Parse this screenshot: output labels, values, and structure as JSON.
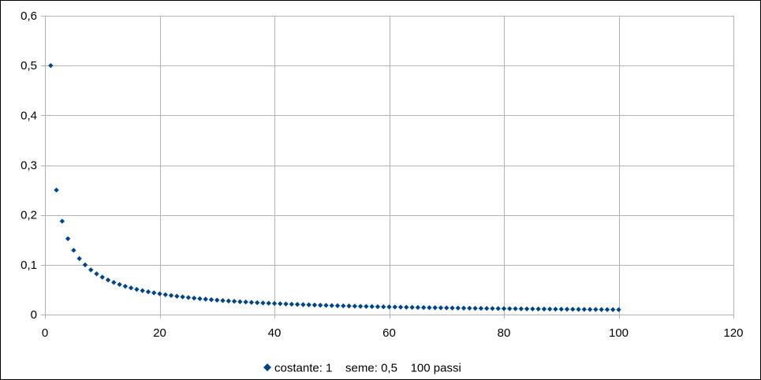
{
  "chart_data": {
    "type": "scatter",
    "title": "",
    "xlabel": "",
    "ylabel": "",
    "xlim": [
      0,
      120
    ],
    "ylim": [
      0,
      0.6
    ],
    "x_ticks": [
      0,
      20,
      40,
      60,
      80,
      100,
      120
    ],
    "y_ticks": [
      0,
      0.1,
      0.2,
      0.3,
      0.4,
      0.5,
      0.6
    ],
    "x_tick_labels": [
      "0",
      "20",
      "40",
      "60",
      "80",
      "100",
      "120"
    ],
    "y_tick_labels": [
      "0",
      "0,1",
      "0,2",
      "0,3",
      "0,4",
      "0,5",
      "0,6"
    ],
    "grid": true,
    "legend_position": "bottom",
    "series": [
      {
        "name": "costante: 1    seme: 0,5    100 passi",
        "color": "#004586",
        "marker": "diamond",
        "x": [
          1,
          2,
          3,
          4,
          5,
          6,
          7,
          8,
          9,
          10,
          11,
          12,
          13,
          14,
          15,
          16,
          17,
          18,
          19,
          20,
          21,
          22,
          23,
          24,
          25,
          26,
          27,
          28,
          29,
          30,
          31,
          32,
          33,
          34,
          35,
          36,
          37,
          38,
          39,
          40,
          41,
          42,
          43,
          44,
          45,
          46,
          47,
          48,
          49,
          50,
          51,
          52,
          53,
          54,
          55,
          56,
          57,
          58,
          59,
          60,
          61,
          62,
          63,
          64,
          65,
          66,
          67,
          68,
          69,
          70,
          71,
          72,
          73,
          74,
          75,
          76,
          77,
          78,
          79,
          80,
          81,
          82,
          83,
          84,
          85,
          86,
          87,
          88,
          89,
          90,
          91,
          92,
          93,
          94,
          95,
          96,
          97,
          98,
          99,
          100
        ],
        "y": [
          0.5,
          0.25,
          0.1875,
          0.1523,
          0.1291,
          0.1124,
          0.0998,
          0.0898,
          0.0818,
          0.0751,
          0.0694,
          0.0646,
          0.0604,
          0.0567,
          0.0535,
          0.0506,
          0.048,
          0.0457,
          0.0436,
          0.0417,
          0.0399,
          0.0383,
          0.0368,
          0.0355,
          0.0342,
          0.033,
          0.0319,
          0.0309,
          0.0299,
          0.029,
          0.0281,
          0.0273,
          0.0266,
          0.0258,
          0.0252,
          0.0245,
          0.0239,
          0.0233,
          0.0228,
          0.0223,
          0.0218,
          0.0213,
          0.0208,
          0.0204,
          0.02,
          0.0196,
          0.0192,
          0.0188,
          0.0185,
          0.0181,
          0.0178,
          0.0175,
          0.0172,
          0.0169,
          0.0166,
          0.0164,
          0.0161,
          0.0158,
          0.0156,
          0.0154,
          0.0152,
          0.0149,
          0.0147,
          0.0145,
          0.0143,
          0.0141,
          0.0139,
          0.0138,
          0.0136,
          0.0134,
          0.0132,
          0.0131,
          0.0129,
          0.0128,
          0.0126,
          0.0125,
          0.0123,
          0.0122,
          0.0121,
          0.0119,
          0.0118,
          0.0117,
          0.0116,
          0.0114,
          0.0113,
          0.0112,
          0.0111,
          0.011,
          0.0109,
          0.0108,
          0.0107,
          0.0106,
          0.0105,
          0.0104,
          0.0103,
          0.0102,
          0.0101,
          0.01,
          0.0099,
          0.0098
        ]
      }
    ]
  }
}
